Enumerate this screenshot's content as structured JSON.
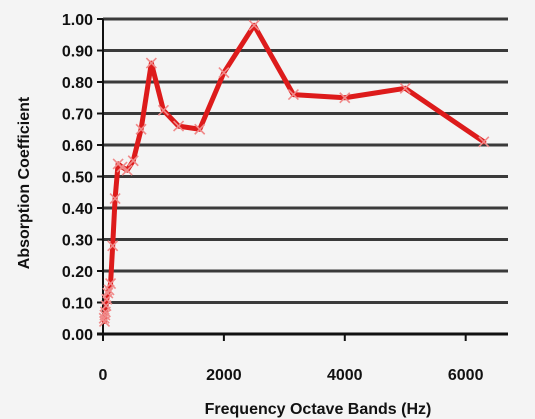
{
  "chart_data": {
    "type": "line",
    "xlabel": "Frequency Octave Bands (Hz)",
    "ylabel": "Absorption Coefficient",
    "xlim": [
      0,
      6700
    ],
    "ylim": [
      0,
      1.0
    ],
    "x_ticks": [
      0,
      2000,
      4000,
      6000
    ],
    "y_ticks": [
      0.0,
      0.1,
      0.2,
      0.3,
      0.4,
      0.5,
      0.6,
      0.7,
      0.8,
      0.9,
      1.0
    ],
    "grid": "horizontal",
    "series": [
      {
        "color": "#dd1b1b",
        "x": [
          20,
          25,
          31.5,
          40,
          50,
          63,
          80,
          100,
          125,
          160,
          200,
          250,
          315,
          400,
          500,
          630,
          800,
          1000,
          1250,
          1600,
          2000,
          2500,
          3150,
          4000,
          5000,
          6300
        ],
        "y": [
          0.05,
          0.04,
          0.06,
          0.07,
          0.09,
          0.11,
          0.13,
          0.14,
          0.16,
          0.28,
          0.43,
          0.54,
          0.53,
          0.52,
          0.55,
          0.65,
          0.86,
          0.71,
          0.66,
          0.65,
          0.83,
          0.98,
          0.76,
          0.75,
          0.78,
          0.61
        ]
      }
    ]
  }
}
